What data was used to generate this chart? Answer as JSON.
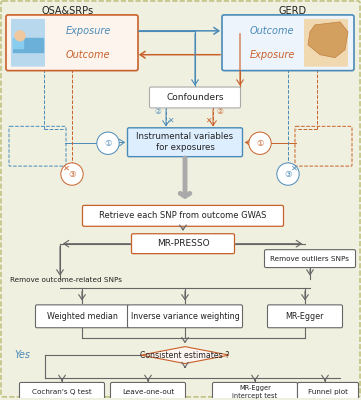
{
  "bg_color": "#f0f0e0",
  "outer_border_color": "#b8b870",
  "blue": "#4a8ab8",
  "orange": "#c8602a",
  "gray": "#666666",
  "lightblue_fill": "#ddeeff",
  "lightorange_fill": "#fff0e8",
  "white": "#ffffff",
  "title_left": "OSA&SRPs",
  "title_right": "GERD",
  "label_exposure": "Exposure",
  "label_outcome": "Outcome",
  "box_confounders": "Confounders",
  "box_iv": "Instrumental variables\nfor exposures",
  "box_snp": "Retrieve each SNP from outcome GWAS",
  "box_mrpresso": "MR-PRESSO",
  "box_remove_outcome": "Remove outcome-related SNPs",
  "box_remove_outliers": "Remove outliers SNPs",
  "box_wm": "Weighted median",
  "box_ivw": "Inverse variance weighting",
  "box_egger": "MR-Egger",
  "label_yes": "Yes",
  "box_consistent": "Consistent estimates ?",
  "box_cochran": "Cochran's Q test",
  "box_leave": "Leave-one-out",
  "box_mregger_int": "MR-Egger\nintercept test",
  "box_funnel": "Funnel plot",
  "circ1_left": "①",
  "circ2_left": "②",
  "circ3_left": "③",
  "circ1_right": "①",
  "circ2_right": "②",
  "circ3_right": "③"
}
